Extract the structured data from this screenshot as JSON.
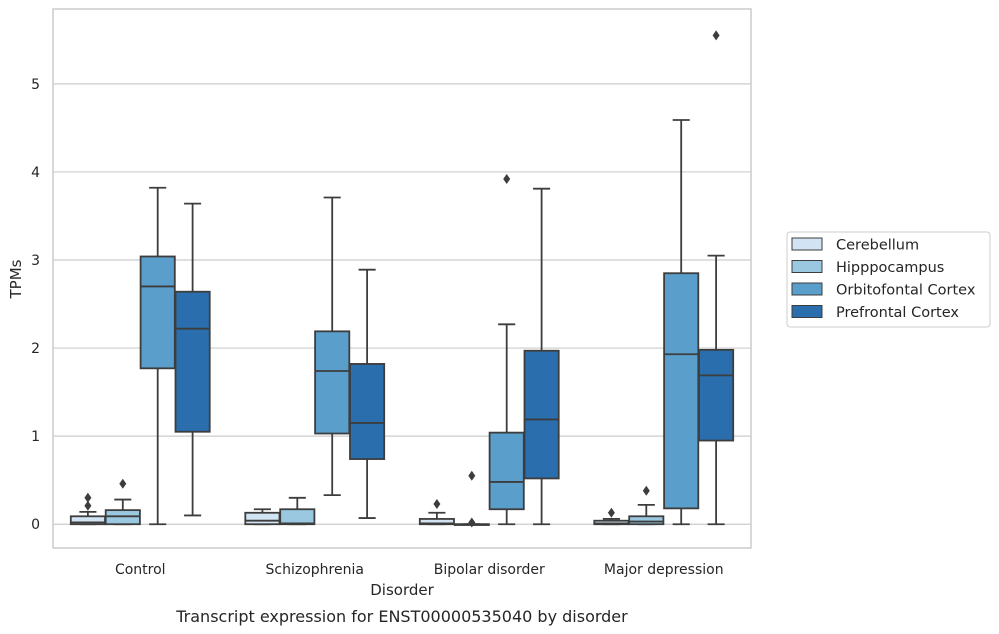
{
  "chart_data": {
    "type": "box",
    "caption": "Transcript expression for ENST00000535040 by disorder",
    "xlabel": "Disorder",
    "ylabel": "TPMs",
    "ylim": [
      -0.27,
      5.85
    ],
    "yticks": [
      0,
      1,
      2,
      3,
      4,
      5
    ],
    "grid": true,
    "legend_position": "right",
    "categories": [
      "Control",
      "Schizophrenia",
      "Bipolar disorder",
      "Major depression"
    ],
    "series": [
      {
        "name": "Cerebellum",
        "color": "#d2e3f3",
        "boxes": [
          {
            "whislo": 0.0,
            "q1": 0.0,
            "med": 0.02,
            "q3": 0.09,
            "whishi": 0.14,
            "fliers": [
              0.21,
              0.3
            ]
          },
          {
            "whislo": 0.0,
            "q1": 0.0,
            "med": 0.04,
            "q3": 0.13,
            "whishi": 0.17,
            "fliers": []
          },
          {
            "whislo": 0.0,
            "q1": 0.0,
            "med": 0.01,
            "q3": 0.06,
            "whishi": 0.13,
            "fliers": [
              0.23
            ]
          },
          {
            "whislo": 0.0,
            "q1": 0.0,
            "med": 0.01,
            "q3": 0.04,
            "whishi": 0.06,
            "fliers": [
              0.13
            ]
          }
        ]
      },
      {
        "name": "Hipppocampus",
        "color": "#9ac8e0",
        "boxes": [
          {
            "whislo": 0.0,
            "q1": 0.0,
            "med": 0.09,
            "q3": 0.16,
            "whishi": 0.28,
            "fliers": [
              0.46
            ]
          },
          {
            "whislo": 0.0,
            "q1": 0.0,
            "med": 0.01,
            "q3": 0.17,
            "whishi": 0.3,
            "fliers": []
          },
          {
            "whislo": 0.0,
            "q1": 0.0,
            "med": 0.0,
            "q3": 0.0,
            "whishi": 0.0,
            "fliers": [
              0.02,
              0.55
            ]
          },
          {
            "whislo": 0.0,
            "q1": 0.0,
            "med": 0.03,
            "q3": 0.09,
            "whishi": 0.22,
            "fliers": [
              0.38
            ]
          }
        ]
      },
      {
        "name": "Orbitofontal Cortex",
        "color": "#5a9ecb",
        "boxes": [
          {
            "whislo": 0.0,
            "q1": 1.77,
            "med": 2.7,
            "q3": 3.04,
            "whishi": 3.82,
            "fliers": []
          },
          {
            "whislo": 0.33,
            "q1": 1.03,
            "med": 1.74,
            "q3": 2.19,
            "whishi": 3.71,
            "fliers": []
          },
          {
            "whislo": 0.0,
            "q1": 0.17,
            "med": 0.48,
            "q3": 1.04,
            "whishi": 2.27,
            "fliers": [
              3.92
            ]
          },
          {
            "whislo": 0.0,
            "q1": 0.18,
            "med": 1.93,
            "q3": 2.85,
            "whishi": 4.59,
            "fliers": []
          }
        ]
      },
      {
        "name": "Prefrontal Cortex",
        "color": "#2a6ead",
        "boxes": [
          {
            "whislo": 0.1,
            "q1": 1.05,
            "med": 2.22,
            "q3": 2.64,
            "whishi": 3.64,
            "fliers": []
          },
          {
            "whislo": 0.07,
            "q1": 0.74,
            "med": 1.15,
            "q3": 1.82,
            "whishi": 2.89,
            "fliers": []
          },
          {
            "whislo": 0.0,
            "q1": 0.52,
            "med": 1.19,
            "q3": 1.97,
            "whishi": 3.81,
            "fliers": []
          },
          {
            "whislo": 0.0,
            "q1": 0.95,
            "med": 1.69,
            "q3": 1.98,
            "whishi": 3.05,
            "fliers": [
              5.55
            ]
          }
        ]
      }
    ]
  }
}
